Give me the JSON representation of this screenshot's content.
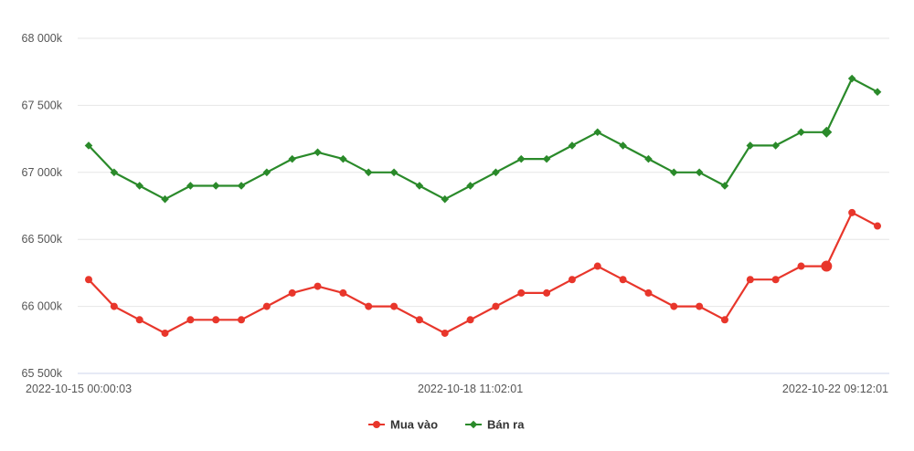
{
  "chart_data": {
    "type": "line",
    "y_ticks": [
      65500,
      66000,
      66500,
      67000,
      67500,
      68000
    ],
    "y_tick_labels": [
      "65 500k",
      "66 000k",
      "66 500k",
      "67 000k",
      "67 500k",
      "68 000k"
    ],
    "ylim": [
      65500,
      68000
    ],
    "x_tick_labels": [
      {
        "index": 0,
        "label": "2022-10-15 00:00:03"
      },
      {
        "index": 15,
        "label": "2022-10-18 11:02:01"
      },
      {
        "index": 31,
        "label": "2022-10-22 09:12:01"
      }
    ],
    "point_count": 32,
    "grid": true,
    "legend_position": "bottom",
    "highlight_index": 29,
    "series": [
      {
        "name": "Mua vào",
        "color": "#e8362b",
        "marker": "circle",
        "values": [
          66200,
          66000,
          65900,
          65800,
          65900,
          65900,
          65900,
          66000,
          66100,
          66150,
          66100,
          66000,
          66000,
          65900,
          65800,
          65900,
          66000,
          66100,
          66100,
          66200,
          66300,
          66200,
          66100,
          66000,
          66000,
          65900,
          66200,
          66200,
          66300,
          66300,
          66700,
          66600
        ]
      },
      {
        "name": "Bán ra",
        "color": "#2a8a2a",
        "marker": "diamond",
        "values": [
          67200,
          67000,
          66900,
          66800,
          66900,
          66900,
          66900,
          67000,
          67100,
          67150,
          67100,
          67000,
          67000,
          66900,
          66800,
          66900,
          67000,
          67100,
          67100,
          67200,
          67300,
          67200,
          67100,
          67000,
          67000,
          66900,
          67200,
          67200,
          67300,
          67300,
          67700,
          67600
        ]
      }
    ]
  }
}
